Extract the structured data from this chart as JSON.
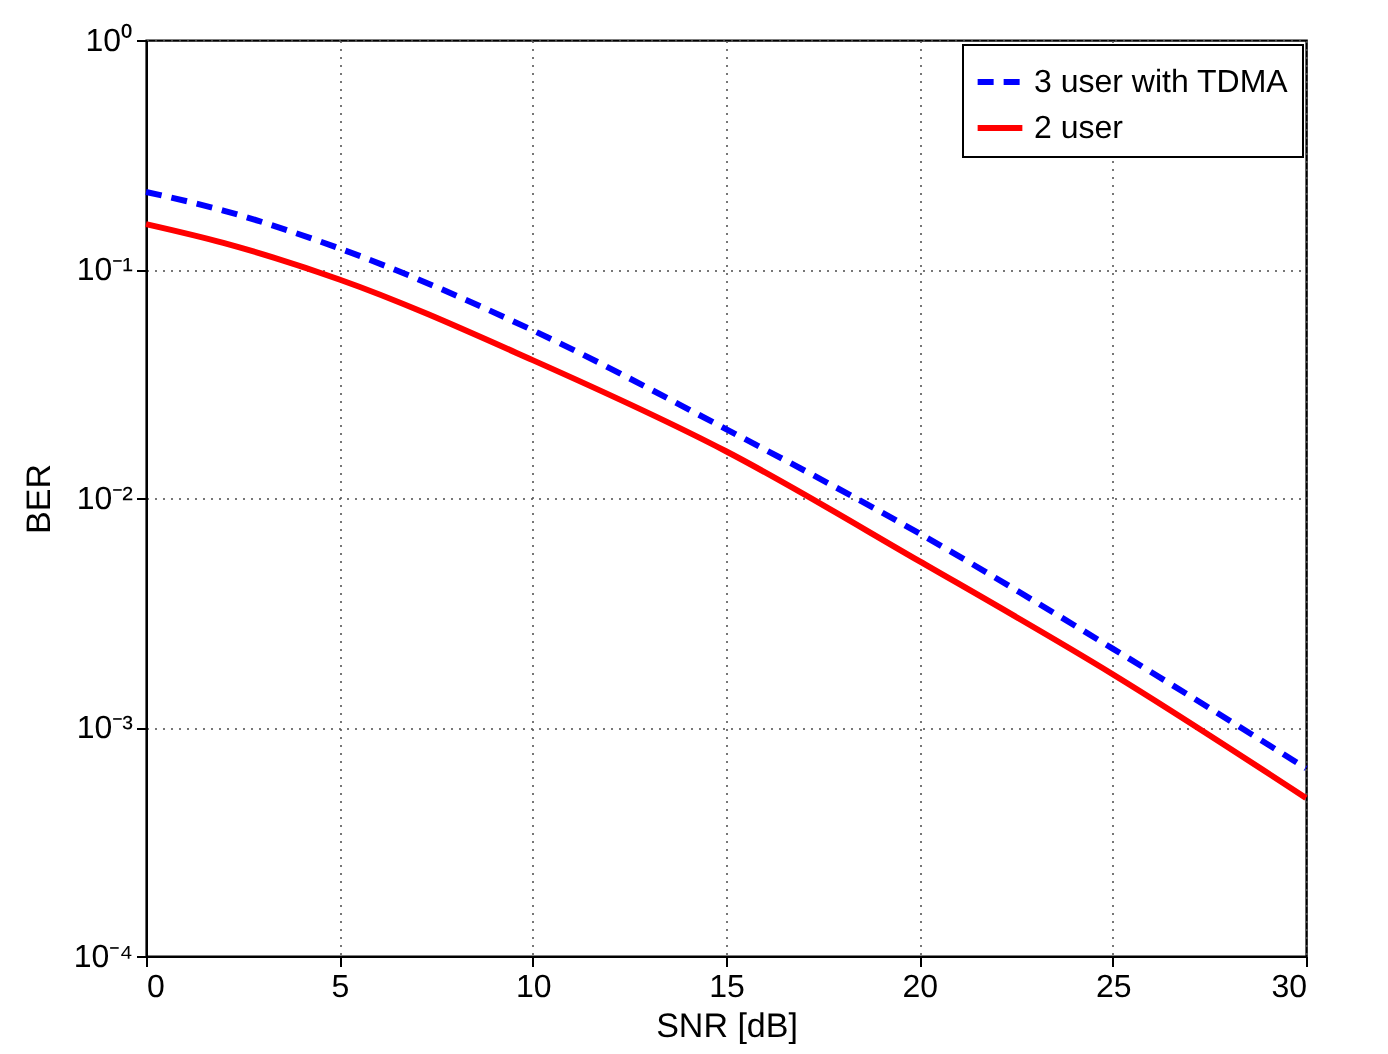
{
  "chart_data": {
    "type": "line",
    "xlabel": "SNR [dB]",
    "ylabel": "BER",
    "log": "y",
    "xlim": [
      0,
      30
    ],
    "xticks": [
      0,
      5,
      10,
      15,
      20,
      25,
      30
    ],
    "ylim": [
      0.0001,
      1
    ],
    "yticks": [
      {
        "value": 0.0001,
        "label": "10⁻⁴"
      },
      {
        "value": 0.001,
        "label": "10⁻³"
      },
      {
        "value": 0.01,
        "label": "10⁻²"
      },
      {
        "value": 0.1,
        "label": "10⁻¹"
      },
      {
        "value": 1,
        "label": "10⁰"
      }
    ],
    "grid": true,
    "legend": "top right",
    "series": [
      {
        "name": "3 user with TDMA",
        "color": "#0000ff",
        "line_style": "dashed",
        "x": [
          0,
          2,
          5,
          10,
          15,
          20,
          25,
          30
        ],
        "values": [
          0.217,
          0.18,
          0.123,
          0.054,
          0.02,
          0.007,
          0.0022,
          0.00066
        ]
      },
      {
        "name": "2 user",
        "color": "#ff0000",
        "line_style": "solid",
        "x": [
          0,
          2,
          5,
          10,
          15,
          20,
          25,
          30
        ],
        "values": [
          0.157,
          0.13,
          0.09,
          0.04,
          0.016,
          0.0053,
          0.0017,
          0.00049
        ]
      }
    ]
  }
}
